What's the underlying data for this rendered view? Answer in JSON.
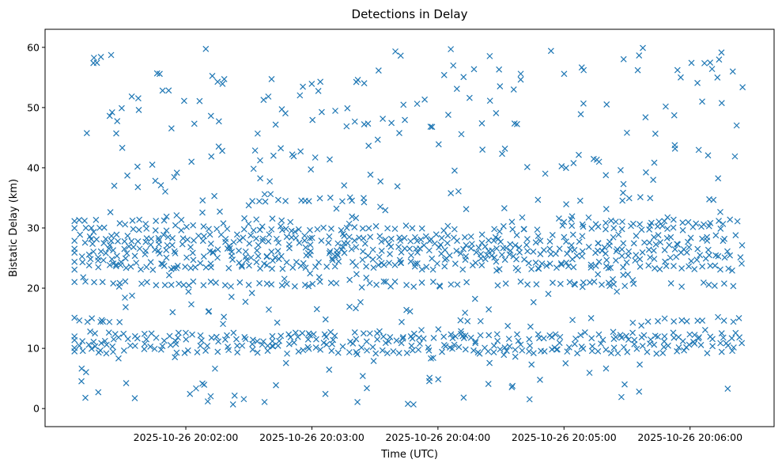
{
  "chart_data": {
    "type": "scatter",
    "title": "Detections in Delay",
    "xlabel": "Time (UTC)",
    "ylabel": "Bistatic Delay (km)",
    "marker": "x",
    "color": "#1f77b4",
    "grid": false,
    "legend": "none",
    "xlim": [
      "2025-10-26 20:00:53",
      "2025-10-26 20:06:40"
    ],
    "ylim": [
      -3,
      63
    ],
    "x_ticks": [
      "2025-10-26 20:02:00",
      "2025-10-26 20:03:00",
      "2025-10-26 20:04:00",
      "2025-10-26 20:05:00",
      "2025-10-26 20:06:00"
    ],
    "y_ticks": [
      0,
      10,
      20,
      30,
      40,
      50,
      60
    ],
    "time_range": [
      "2025-10-26 20:01:07",
      "2025-10-26 20:06:25"
    ],
    "bands": [
      {
        "delay": 9.5,
        "start": "2025-10-26 20:01:07",
        "end": "2025-10-26 20:06:25"
      },
      {
        "delay": 10.5,
        "start": "2025-10-26 20:01:07",
        "end": "2025-10-26 20:06:25"
      },
      {
        "delay": 11.5,
        "start": "2025-10-26 20:01:07",
        "end": "2025-10-26 20:06:25"
      },
      {
        "delay": 12.2,
        "start": "2025-10-26 20:01:07",
        "end": "2025-10-26 20:06:25"
      },
      {
        "delay": 14.8,
        "start": "2025-10-26 20:01:07",
        "end": "2025-10-26 20:01:30"
      },
      {
        "delay": 14.8,
        "start": "2025-10-26 20:05:40",
        "end": "2025-10-26 20:06:25"
      },
      {
        "delay": 20.7,
        "start": "2025-10-26 20:01:07",
        "end": "2025-10-26 20:06:25"
      },
      {
        "delay": 23.5,
        "start": "2025-10-26 20:01:07",
        "end": "2025-10-26 20:06:25"
      },
      {
        "delay": 24.5,
        "start": "2025-10-26 20:01:07",
        "end": "2025-10-26 20:06:25"
      },
      {
        "delay": 25.5,
        "start": "2025-10-26 20:01:07",
        "end": "2025-10-26 20:06:25"
      },
      {
        "delay": 26.5,
        "start": "2025-10-26 20:01:07",
        "end": "2025-10-26 20:06:25"
      },
      {
        "delay": 27.5,
        "start": "2025-10-26 20:01:07",
        "end": "2025-10-26 20:06:25"
      },
      {
        "delay": 28.5,
        "start": "2025-10-26 20:01:07",
        "end": "2025-10-26 20:06:25"
      },
      {
        "delay": 30.0,
        "start": "2025-10-26 20:01:07",
        "end": "2025-10-26 20:06:25"
      },
      {
        "delay": 31.0,
        "start": "2025-10-26 20:01:07",
        "end": "2025-10-26 20:01:50"
      },
      {
        "delay": 31.0,
        "start": "2025-10-26 20:05:00",
        "end": "2025-10-26 20:06:25"
      },
      {
        "delay": 34.8,
        "start": "2025-10-26 20:02:25",
        "end": "2025-10-26 20:03:20"
      },
      {
        "delay": 34.8,
        "start": "2025-10-26 20:05:25",
        "end": "2025-10-26 20:05:45"
      }
    ],
    "scatter_density": "uniform sparse detections between 0 and 60 km across the full time range"
  }
}
